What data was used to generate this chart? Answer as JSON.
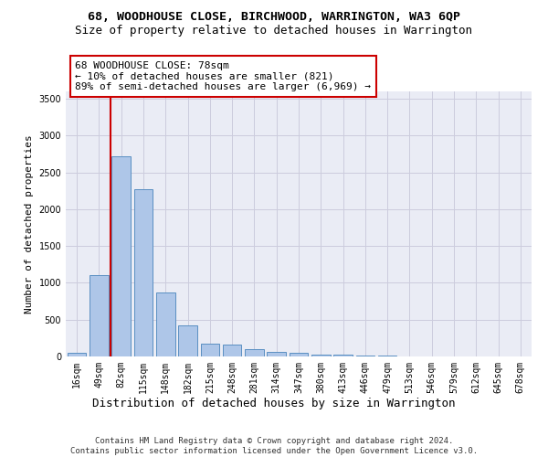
{
  "title": "68, WOODHOUSE CLOSE, BIRCHWOOD, WARRINGTON, WA3 6QP",
  "subtitle": "Size of property relative to detached houses in Warrington",
  "xlabel": "Distribution of detached houses by size in Warrington",
  "ylabel": "Number of detached properties",
  "categories": [
    "16sqm",
    "49sqm",
    "82sqm",
    "115sqm",
    "148sqm",
    "182sqm",
    "215sqm",
    "248sqm",
    "281sqm",
    "314sqm",
    "347sqm",
    "380sqm",
    "413sqm",
    "446sqm",
    "479sqm",
    "513sqm",
    "546sqm",
    "579sqm",
    "612sqm",
    "645sqm",
    "678sqm"
  ],
  "values": [
    50,
    1110,
    2720,
    2270,
    870,
    420,
    170,
    165,
    95,
    60,
    55,
    30,
    25,
    10,
    8,
    0,
    0,
    0,
    0,
    0,
    0
  ],
  "bar_color": "#aec6e8",
  "bar_edgecolor": "#5a8fc2",
  "grid_color": "#ccccdd",
  "background_color": "#eaecf5",
  "annotation_box_text": "68 WOODHOUSE CLOSE: 78sqm\n← 10% of detached houses are smaller (821)\n89% of semi-detached houses are larger (6,969) →",
  "annotation_box_color": "#ffffff",
  "annotation_box_edgecolor": "#cc0000",
  "vline_bar_index": 2,
  "vline_color": "#cc0000",
  "ylim": [
    0,
    3600
  ],
  "yticks": [
    0,
    500,
    1000,
    1500,
    2000,
    2500,
    3000,
    3500
  ],
  "footer": "Contains HM Land Registry data © Crown copyright and database right 2024.\nContains public sector information licensed under the Open Government Licence v3.0.",
  "title_fontsize": 9.5,
  "subtitle_fontsize": 9,
  "xlabel_fontsize": 9,
  "ylabel_fontsize": 8,
  "tick_fontsize": 7,
  "annotation_fontsize": 8,
  "footer_fontsize": 6.5
}
